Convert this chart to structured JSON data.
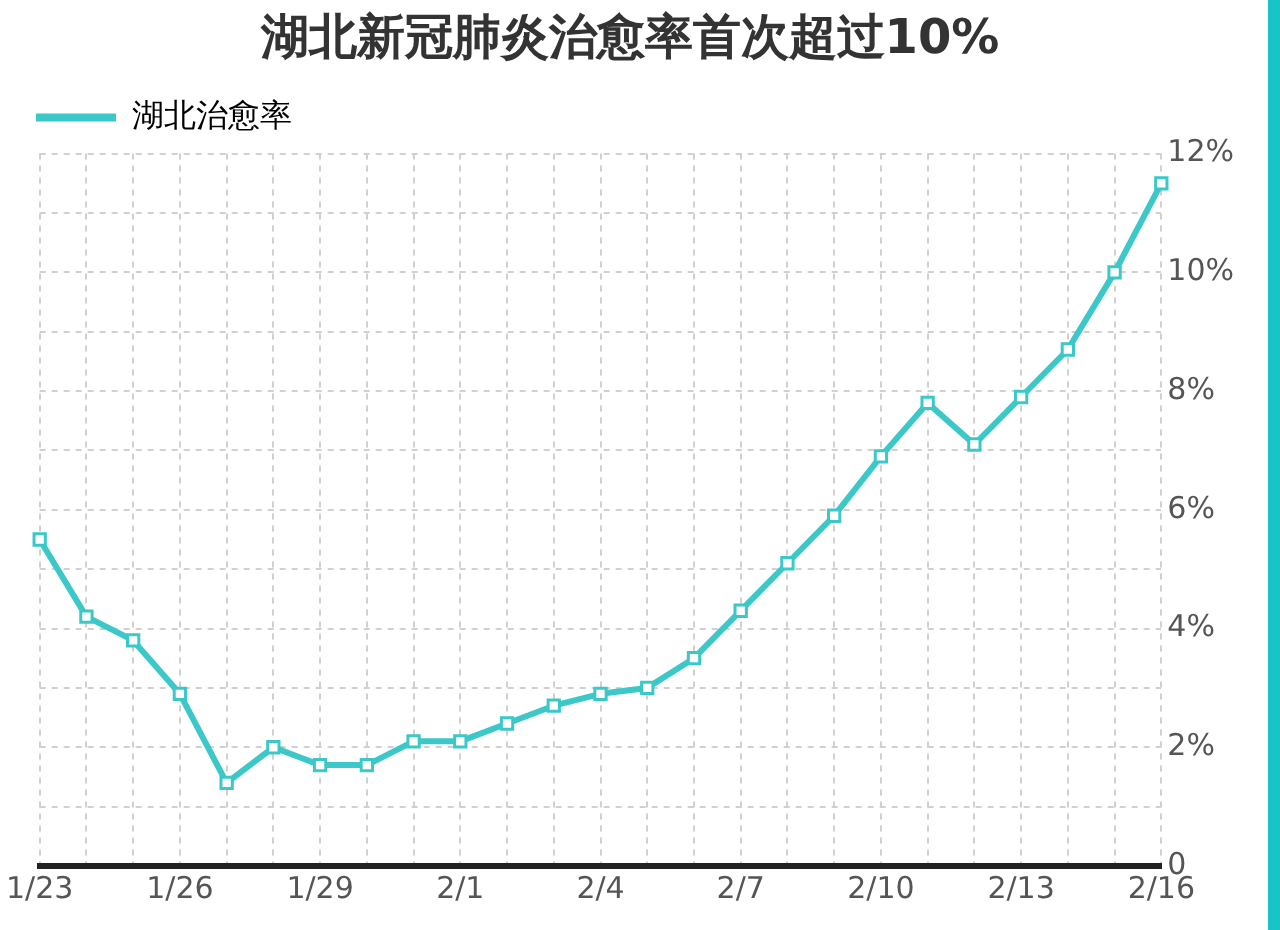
{
  "chart_data": {
    "type": "line",
    "title": "湖北新冠肺炎治愈率首次超过10%",
    "categories": [
      "1/23",
      null,
      null,
      "1/26",
      null,
      null,
      "1/29",
      null,
      null,
      "2/1",
      null,
      null,
      "2/4",
      null,
      null,
      "2/7",
      null,
      null,
      "2/10",
      null,
      null,
      "2/13",
      null,
      null,
      "2/16"
    ],
    "series": [
      {
        "name": "湖北治愈率",
        "color": "#3cc8c8",
        "values": [
          5.5,
          4.2,
          3.8,
          2.9,
          1.4,
          2.0,
          1.7,
          1.7,
          2.1,
          2.1,
          2.4,
          2.7,
          2.9,
          3.0,
          3.5,
          4.3,
          5.1,
          5.9,
          6.9,
          7.8,
          7.1,
          7.9,
          8.7,
          10.0,
          11.5
        ]
      }
    ],
    "ylim": [
      0,
      12
    ],
    "yticks": [
      0,
      {
        "value": 1,
        "label": null
      },
      {
        "value": 2,
        "label": "2%"
      },
      {
        "value": 3,
        "label": null
      },
      {
        "value": 4,
        "label": "4%"
      },
      {
        "value": 5,
        "label": null
      },
      {
        "value": 6,
        "label": "6%"
      },
      {
        "value": 7,
        "label": null
      },
      {
        "value": 8,
        "label": "8%"
      },
      {
        "value": 9,
        "label": null
      },
      {
        "value": 10,
        "label": "10%"
      },
      {
        "value": 11,
        "label": null
      },
      {
        "value": 12,
        "label": "12%"
      }
    ],
    "grid": true,
    "legend": "top left",
    "marker": "square",
    "line_style": "solid"
  }
}
